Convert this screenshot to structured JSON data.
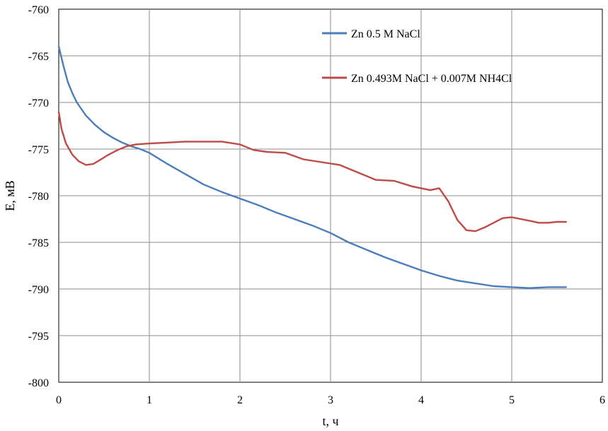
{
  "chart_data": {
    "type": "line",
    "title": "",
    "xlabel": "t, ч",
    "ylabel": "E, мВ",
    "xlim": [
      0,
      6
    ],
    "ylim": [
      -800,
      -760
    ],
    "xticks": [
      0,
      1,
      2,
      3,
      4,
      5,
      6
    ],
    "yticks": [
      -760,
      -765,
      -770,
      -775,
      -780,
      -785,
      -790,
      -795,
      -800
    ],
    "xtick_labels": [
      "0",
      "1",
      "2",
      "3",
      "4",
      "5",
      "6"
    ],
    "ytick_labels": [
      "-760",
      "-765",
      "-770",
      "-775",
      "-780",
      "-785",
      "-790",
      "-795",
      "-800"
    ],
    "grid": true,
    "legend_position": "top-right",
    "series": [
      {
        "name": "Zn 0.5 M NaCl",
        "color": "#4a7ebb",
        "x": [
          0,
          0.05,
          0.1,
          0.15,
          0.2,
          0.3,
          0.4,
          0.5,
          0.6,
          0.7,
          0.8,
          0.9,
          1.0,
          1.2,
          1.4,
          1.6,
          1.8,
          2.0,
          2.2,
          2.4,
          2.6,
          2.8,
          3.0,
          3.2,
          3.4,
          3.6,
          3.8,
          4.0,
          4.2,
          4.4,
          4.6,
          4.8,
          5.0,
          5.2,
          5.4,
          5.6
        ],
        "y": [
          -764.0,
          -766.0,
          -767.8,
          -769.0,
          -770.0,
          -771.4,
          -772.4,
          -773.2,
          -773.8,
          -774.3,
          -774.7,
          -775.0,
          -775.4,
          -776.6,
          -777.7,
          -778.8,
          -779.6,
          -780.3,
          -781.0,
          -781.8,
          -782.5,
          -783.2,
          -784.0,
          -785.0,
          -785.8,
          -786.6,
          -787.3,
          -788.0,
          -788.6,
          -789.1,
          -789.4,
          -789.7,
          -789.8,
          -789.9,
          -789.8,
          -789.8
        ]
      },
      {
        "name": "Zn 0.493M NaCl + 0.007M NH4Cl",
        "color": "#be4b48",
        "x": [
          0,
          0.03,
          0.08,
          0.15,
          0.22,
          0.3,
          0.38,
          0.45,
          0.55,
          0.65,
          0.75,
          0.85,
          1.0,
          1.2,
          1.4,
          1.6,
          1.8,
          2.0,
          2.15,
          2.3,
          2.5,
          2.7,
          2.9,
          3.1,
          3.3,
          3.5,
          3.7,
          3.9,
          4.1,
          4.2,
          4.3,
          4.4,
          4.5,
          4.6,
          4.7,
          4.8,
          4.9,
          5.0,
          5.1,
          5.2,
          5.3,
          5.4,
          5.5,
          5.6
        ],
        "y": [
          -771.0,
          -772.8,
          -774.4,
          -775.6,
          -776.3,
          -776.7,
          -776.6,
          -776.2,
          -775.6,
          -775.1,
          -774.7,
          -774.5,
          -774.4,
          -774.3,
          -774.2,
          -774.2,
          -774.2,
          -774.5,
          -775.1,
          -775.3,
          -775.4,
          -776.1,
          -776.4,
          -776.7,
          -777.5,
          -778.3,
          -778.4,
          -779.0,
          -779.4,
          -779.2,
          -780.6,
          -782.6,
          -783.7,
          -783.8,
          -783.4,
          -782.9,
          -782.4,
          -782.3,
          -782.5,
          -782.7,
          -782.9,
          -782.9,
          -782.8,
          -782.8
        ]
      }
    ]
  }
}
